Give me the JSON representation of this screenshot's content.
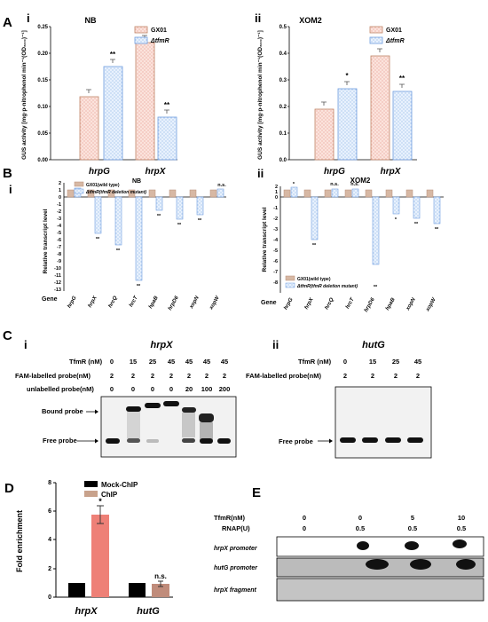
{
  "panels": {
    "A": {
      "letter": "A",
      "i": {
        "roman": "i",
        "title": "NB",
        "ylabel": "GUS activity [mg·p-nitrophenol min⁻¹(OD₆₀₀)⁻¹]",
        "yticks": [
          "0.00",
          "0.05",
          "0.10",
          "0.15",
          "0.20",
          "0.25"
        ],
        "legend": [
          "GX01",
          "ΔtfmR"
        ],
        "categories": [
          "hrpG",
          "hrpX"
        ],
        "sig": [
          "**",
          "**"
        ]
      },
      "ii": {
        "roman": "ii",
        "title": "XOM2",
        "ylabel": "GUS activity [mg·p-nitrophenol min⁻¹(OD₆₀₀)⁻¹]",
        "yticks": [
          "0.0",
          "0.1",
          "0.2",
          "0.3",
          "0.4",
          "0.5"
        ],
        "legend": [
          "GX01",
          "ΔtfmR"
        ],
        "categories": [
          "hrpG",
          "hrpX"
        ],
        "sig": [
          "*",
          "**"
        ]
      }
    },
    "B": {
      "letter": "B",
      "i": {
        "roman": "i",
        "title": "NB",
        "ylabel": "Relative transcript level",
        "yticks": [
          "2",
          "1",
          "0",
          "-1",
          "-2",
          "-3",
          "-4",
          "-5",
          "-6",
          "-7",
          "-8",
          "-9",
          "-10",
          "-11",
          "-12",
          "-13"
        ],
        "legend": [
          "GX01(wild type)",
          "ΔtfmR(tfmR deletion mutant)"
        ],
        "genes": [
          "hrpG",
          "hrpX",
          "hrcQ",
          "hrcT",
          "hpaB",
          "hrpD6",
          "xopN",
          "xopW"
        ],
        "gene_label": "Gene",
        "sig": [
          "*",
          "**",
          "**",
          "**",
          "**",
          "**",
          "**",
          "n.s."
        ]
      },
      "ii": {
        "roman": "ii",
        "title": "XOM2",
        "ylabel": "Relative transcript level",
        "yticks": [
          "2",
          "1",
          "0",
          "-1",
          "-2",
          "-3",
          "-4",
          "-5",
          "-6",
          "-7",
          "-8"
        ],
        "legend": [
          "GX01(wild type)",
          "ΔtfmR(tfmR deletion mutant)"
        ],
        "genes": [
          "hrpG",
          "hrpX",
          "hrcQ",
          "hrcT",
          "hrpD6",
          "hpaB",
          "xopN",
          "xopW"
        ],
        "gene_label": "Gene",
        "sig": [
          "*",
          "**",
          "n.s.",
          "n.s.",
          "**",
          "*",
          "**",
          "**"
        ]
      }
    },
    "C": {
      "letter": "C",
      "i": {
        "roman": "i",
        "title": "hrpX",
        "row_labels": [
          "TfmR (nM)",
          "FAM-labelled probe(nM)",
          "unlabelled probe(nM)"
        ],
        "tfmr": [
          "0",
          "15",
          "25",
          "45",
          "45",
          "45",
          "45"
        ],
        "fam": [
          "2",
          "2",
          "2",
          "2",
          "2",
          "2",
          "2"
        ],
        "unlabelled": [
          "0",
          "0",
          "0",
          "0",
          "20",
          "100",
          "200"
        ],
        "bound_label": "Bound probe",
        "free_label": "Free probe"
      },
      "ii": {
        "roman": "ii",
        "title": "hutG",
        "row_labels": [
          "TfmR (nM)",
          "FAM-labelled probe(nM)"
        ],
        "tfmr": [
          "0",
          "15",
          "25",
          "45"
        ],
        "fam": [
          "2",
          "2",
          "2",
          "2"
        ],
        "free_label": "Free probe"
      }
    },
    "D": {
      "letter": "D",
      "ylabel": "Fold enrichment",
      "yticks": [
        "0",
        "2",
        "4",
        "6",
        "8"
      ],
      "legend": [
        "Mock-ChIP",
        "ChIP"
      ],
      "categories": [
        "hrpX",
        "hutG"
      ],
      "sig": [
        "*",
        "n.s."
      ]
    },
    "E": {
      "letter": "E",
      "row_labels": [
        "TfmR(nM)",
        "RNAP(U)"
      ],
      "tfmr": [
        "0",
        "0",
        "5",
        "10"
      ],
      "rnap": [
        "0",
        "0.5",
        "0.5",
        "0.5"
      ],
      "blots": [
        "hrpX promoter",
        "hutG promoter",
        "hrpX fragment"
      ]
    }
  },
  "colors": {
    "wt": "#c8a28c",
    "mut": "#7da7e6",
    "mock": "#000000",
    "chip": "#ee8077",
    "ns_bar": "#b78e78"
  },
  "chart_data": [
    {
      "type": "bar",
      "title": "NB",
      "categories": [
        "hrpG",
        "hrpX"
      ],
      "ylabel": "GUS activity",
      "ylim": [
        0,
        0.25
      ],
      "series": [
        {
          "name": "GX01",
          "values": [
            0.118,
            0.22
          ]
        },
        {
          "name": "ΔtfmR",
          "values": [
            0.175,
            0.08
          ]
        }
      ]
    },
    {
      "type": "bar",
      "title": "XOM2",
      "categories": [
        "hrpG",
        "hrpX"
      ],
      "ylabel": "GUS activity",
      "ylim": [
        0,
        0.5
      ],
      "series": [
        {
          "name": "GX01",
          "values": [
            0.19,
            0.39
          ]
        },
        {
          "name": "ΔtfmR",
          "values": [
            0.265,
            0.255
          ]
        }
      ]
    },
    {
      "type": "bar",
      "title": "NB",
      "categories": [
        "hrpG",
        "hrpX",
        "hrcQ",
        "hrcT",
        "hpaB",
        "hrpD6",
        "xopN",
        "xopW"
      ],
      "ylabel": "Relative transcript level",
      "ylim": [
        -13,
        2
      ],
      "series": [
        {
          "name": "GX01(wild type)",
          "values": [
            1,
            1,
            1,
            1,
            1,
            1,
            1,
            1
          ]
        },
        {
          "name": "ΔtfmR(tfmR deletion mutant)",
          "values": [
            1.2,
            -5.1,
            -6.7,
            -11.8,
            -1.9,
            -3.1,
            -2.5,
            1.1
          ]
        }
      ]
    },
    {
      "type": "bar",
      "title": "XOM2",
      "categories": [
        "hrpG",
        "hrpX",
        "hrcQ",
        "hrcT",
        "hrpD6",
        "hpaB",
        "xopN",
        "xopW"
      ],
      "ylabel": "Relative transcript level",
      "ylim": [
        -8,
        2
      ],
      "series": [
        {
          "name": "GX01(wild type)",
          "values": [
            1,
            1,
            1,
            1,
            1,
            1,
            1,
            1
          ]
        },
        {
          "name": "ΔtfmR(tfmR deletion mutant)",
          "values": [
            1.4,
            -4.0,
            1.2,
            1.1,
            -6.3,
            -1.6,
            -2.0,
            -2.5
          ]
        }
      ]
    },
    {
      "type": "bar",
      "categories": [
        "hrpX",
        "hutG"
      ],
      "ylabel": "Fold enrichment",
      "ylim": [
        0,
        8
      ],
      "series": [
        {
          "name": "Mock-ChIP",
          "values": [
            1,
            1
          ]
        },
        {
          "name": "ChIP",
          "values": [
            5.8,
            0.9
          ]
        }
      ]
    }
  ]
}
